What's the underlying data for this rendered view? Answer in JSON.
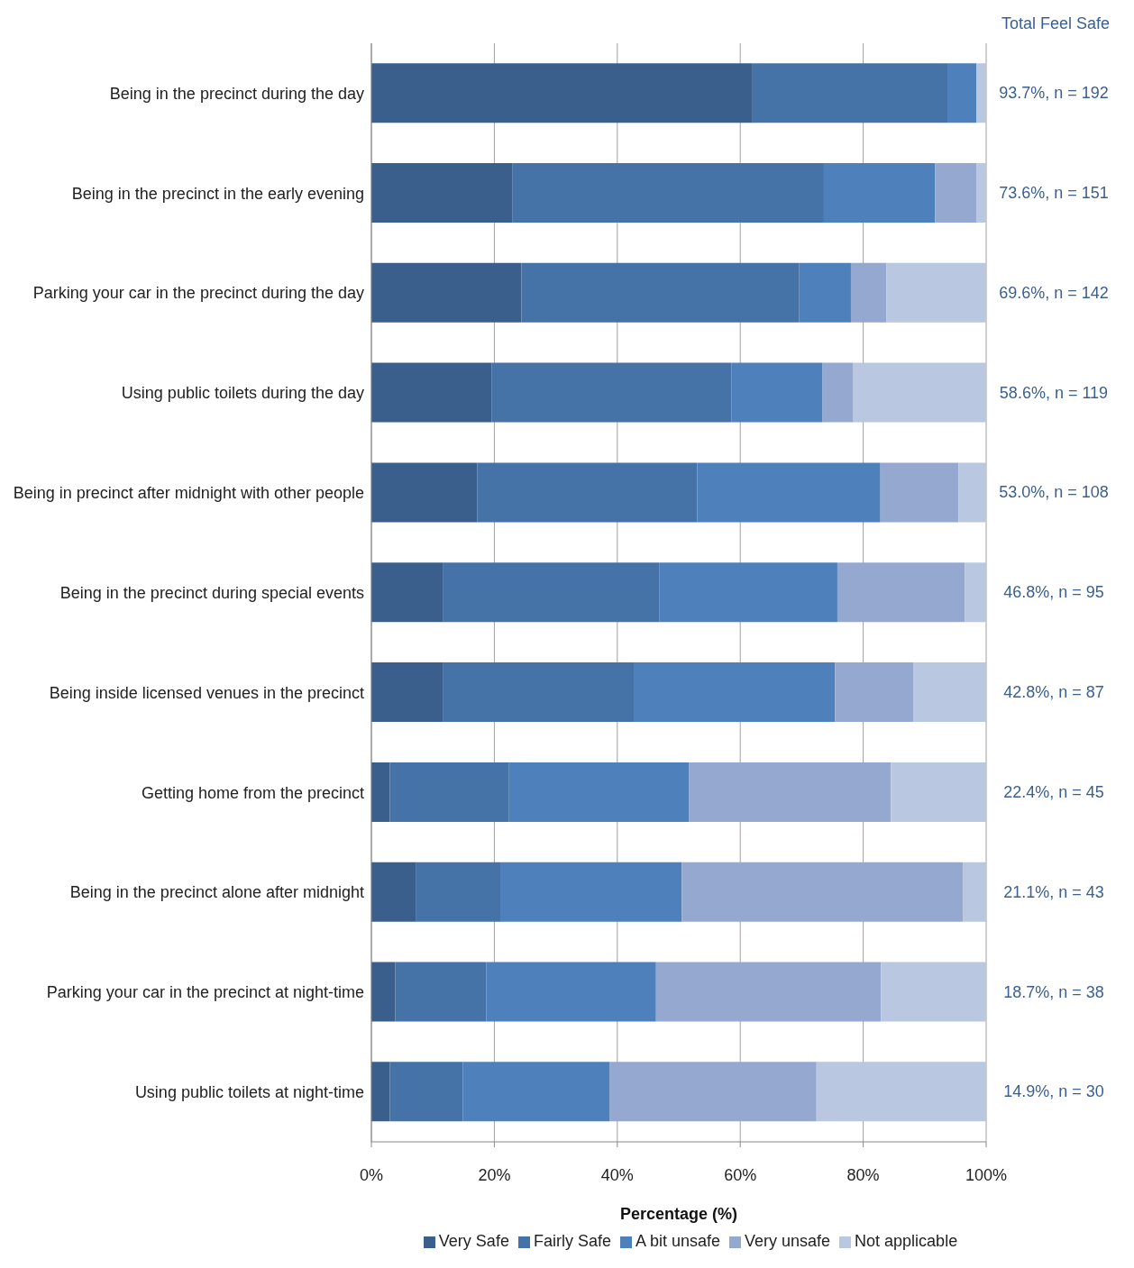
{
  "chart_data": {
    "type": "bar",
    "orientation": "horizontal",
    "stacked": true,
    "categories": [
      "Being in the precinct during the day",
      "Being in the precinct in the early evening",
      "Parking your car in the precinct during the day",
      "Using public toilets during the day",
      "Being in precinct after midnight with other people",
      "Being in the precinct during special events",
      "Being inside licensed venues in the precinct",
      "Getting home from the precinct",
      "Being in the precinct alone after midnight",
      "Parking your car in the precinct at night-time",
      "Using public toilets at night-time"
    ],
    "series": [
      {
        "name": "Very Safe",
        "color": "#3a5f8c",
        "values": [
          62.0,
          22.9,
          24.4,
          19.6,
          17.2,
          11.7,
          11.7,
          3.0,
          7.3,
          3.9,
          3.0
        ]
      },
      {
        "name": "Fairly Safe",
        "color": "#4572a7",
        "values": [
          31.7,
          50.7,
          45.2,
          39.0,
          35.8,
          35.1,
          31.1,
          19.4,
          13.8,
          14.8,
          11.9
        ]
      },
      {
        "name": "A bit unsafe",
        "color": "#4e80bb",
        "values": [
          4.7,
          18.1,
          8.4,
          14.8,
          29.8,
          29.0,
          32.6,
          29.3,
          29.4,
          27.6,
          23.9
        ]
      },
      {
        "name": "Very unsafe",
        "color": "#95a9d0",
        "values": [
          0,
          6.7,
          5.8,
          4.9,
          12.7,
          20.7,
          12.8,
          32.8,
          45.7,
          36.6,
          33.6
        ]
      },
      {
        "name": "Not applicable",
        "color": "#b9c7e0",
        "values": [
          1.6,
          1.6,
          16.3,
          21.8,
          4.5,
          3.5,
          11.9,
          15.5,
          3.9,
          17.2,
          27.8
        ]
      }
    ],
    "xlim": [
      0,
      100
    ],
    "xticks": [
      {
        "value": 0,
        "label": "0%"
      },
      {
        "value": 20,
        "label": "20%"
      },
      {
        "value": 40,
        "label": "40%"
      },
      {
        "value": 60,
        "label": "60%"
      },
      {
        "value": 80,
        "label": "80%"
      },
      {
        "value": 100,
        "label": "100%"
      }
    ],
    "xlabel": "Percentage (%)",
    "grid": "x",
    "legend": "bottom",
    "annotations": [
      "Total Feel Safe",
      "93.7%, n = 192",
      "73.6%, n = 151",
      "69.6%, n = 142",
      "58.6%, n = 119",
      "53.0%, n =  108",
      "46.8%, n = 95",
      "42.8%, n = 87",
      "22.4%, n = 45",
      "21.1%, n = 43",
      "18.7%, n = 38",
      "14.9%, n = 30"
    ]
  }
}
